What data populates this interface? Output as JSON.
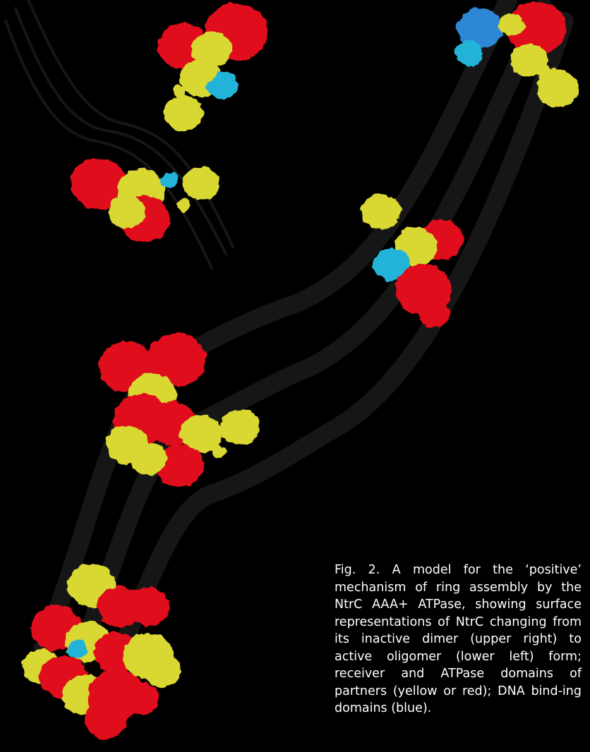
{
  "figure": {
    "caption": "Fig. 2. A model for the ‘positive’ mechanism of ring assembly by the NtrC AAA+ ATPase, showing surface representations of NtrC changing from its inactive dimer (upper right) to active oligomer (lower left) form; receiver and ATPase domains of partners (yellow or red); DNA bind-ing domains (blue).",
    "colors": {
      "background": "#000000",
      "dna_strand": "#161616",
      "atpase_red": "#e0101c",
      "receiver_yellow": "#d9d832",
      "dna_binding_blue": "#2f86d6",
      "cyan": "#24b4d8",
      "caption_text": "#ffffff"
    },
    "illustration": {
      "background_elements": [
        "dna-helix-strand"
      ],
      "molecules": [
        "dimer-top-center",
        "dimer-top-right",
        "dimer-mid-left",
        "dimer-mid-right",
        "oligomer-partial",
        "oligomer-ring"
      ]
    }
  }
}
